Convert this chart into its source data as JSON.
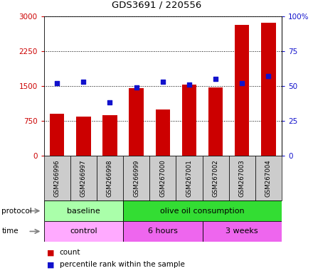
{
  "title": "GDS3691 / 220556",
  "samples": [
    "GSM266996",
    "GSM266997",
    "GSM266998",
    "GSM266999",
    "GSM267000",
    "GSM267001",
    "GSM267002",
    "GSM267003",
    "GSM267004"
  ],
  "counts": [
    900,
    845,
    870,
    1450,
    1000,
    1530,
    1470,
    2820,
    2870
  ],
  "percentile_ranks": [
    52,
    53,
    38,
    49,
    53,
    51,
    55,
    52,
    57
  ],
  "bar_color": "#cc0000",
  "dot_color": "#1111cc",
  "ylim_left": [
    0,
    3000
  ],
  "ylim_right": [
    0,
    100
  ],
  "yticks_left": [
    0,
    750,
    1500,
    2250,
    3000
  ],
  "yticks_right": [
    0,
    25,
    50,
    75,
    100
  ],
  "ytick_labels_right": [
    "0",
    "25",
    "50",
    "75",
    "100%"
  ],
  "protocol_groups": [
    {
      "label": "baseline",
      "start": 0,
      "end": 3,
      "color": "#aaffaa"
    },
    {
      "label": "olive oil consumption",
      "start": 3,
      "end": 9,
      "color": "#33dd33"
    }
  ],
  "time_colors": [
    "#ffaaff",
    "#ee66ee",
    "#ee66ee"
  ],
  "time_groups": [
    {
      "label": "control",
      "start": 0,
      "end": 3
    },
    {
      "label": "6 hours",
      "start": 3,
      "end": 6
    },
    {
      "label": "3 weeks",
      "start": 6,
      "end": 9
    }
  ],
  "background_color": "#ffffff",
  "tick_label_bg": "#cccccc",
  "left_axis_color": "#cc0000",
  "right_axis_color": "#1111cc"
}
